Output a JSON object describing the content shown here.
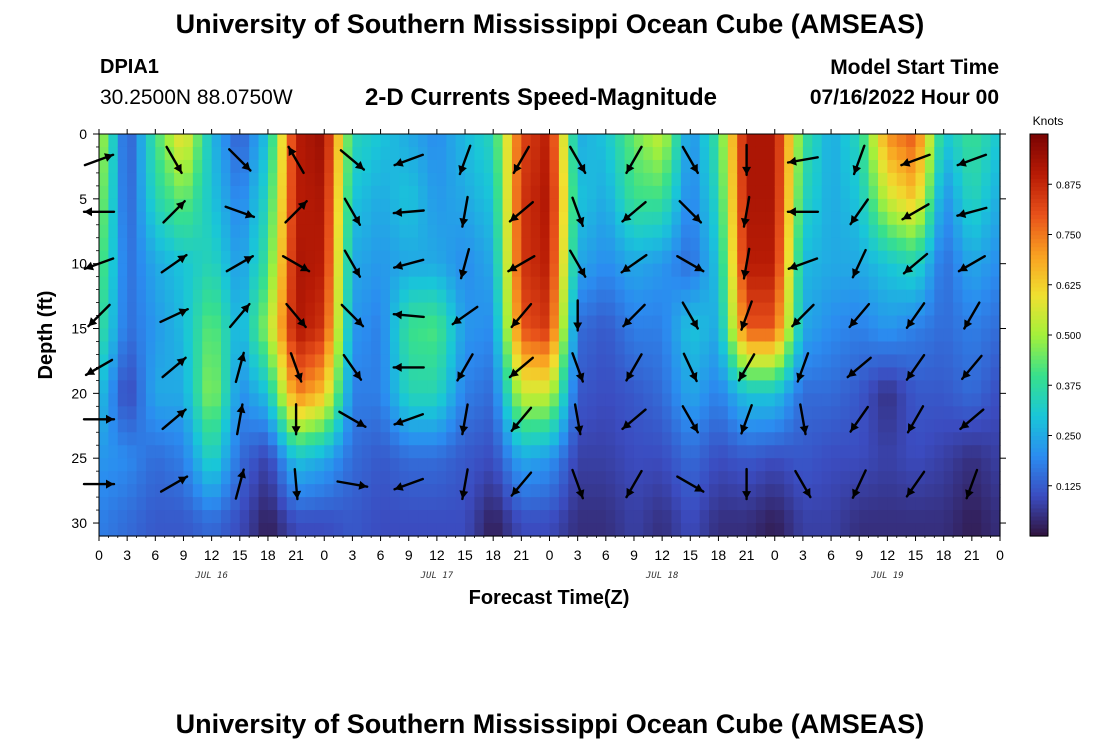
{
  "header": {
    "title": "University of Southern Mississippi Ocean Cube (AMSEAS)",
    "station_id": "DPIA1",
    "coordinates": "30.2500N  88.0750W",
    "subtitle": "2-D Currents Speed-Magnitude",
    "model_start_label": "Model Start Time",
    "model_start_value": "07/16/2022 Hour 00"
  },
  "footer": {
    "title": "University of Southern Mississippi Ocean Cube (AMSEAS)"
  },
  "chart_data": {
    "type": "heatmap",
    "title": "2-D Currents Speed-Magnitude",
    "xlabel": "Forecast Time(Z)",
    "ylabel": "Depth (ft)",
    "x_range_hours": [
      0,
      96
    ],
    "y_range_ft": [
      0,
      31
    ],
    "y_inverted": true,
    "xticks_hours": [
      0,
      3,
      6,
      9,
      12,
      15,
      18,
      21,
      24,
      27,
      30,
      33,
      36,
      39,
      42,
      45,
      48,
      51,
      54,
      57,
      60,
      63,
      66,
      69,
      72,
      75,
      78,
      81,
      84,
      87,
      90,
      93,
      96
    ],
    "xtick_labels": [
      "0",
      "3",
      "6",
      "9",
      "12",
      "15",
      "18",
      "21",
      "0",
      "3",
      "6",
      "9",
      "12",
      "15",
      "18",
      "21",
      "0",
      "3",
      "6",
      "9",
      "12",
      "15",
      "18",
      "21",
      "0",
      "3",
      "6",
      "9",
      "12",
      "15",
      "18",
      "21",
      "0"
    ],
    "day_labels": [
      {
        "text": "JUL 16",
        "hour": 12
      },
      {
        "text": "JUL 17",
        "hour": 36
      },
      {
        "text": "JUL 18",
        "hour": 60
      },
      {
        "text": "JUL 19",
        "hour": 84
      }
    ],
    "yticks": [
      0,
      5,
      10,
      15,
      20,
      25,
      30
    ],
    "colorbar": {
      "unit": "Knots",
      "range": [
        0,
        1.0
      ],
      "ticks": [
        0.125,
        0.25,
        0.375,
        0.5,
        0.625,
        0.75,
        0.875
      ],
      "tick_labels": [
        "0.125",
        "0.250",
        "0.375",
        "0.500",
        "0.625",
        "0.750",
        "0.875"
      ],
      "colormap": [
        "#30123b",
        "#3b4cc0",
        "#2b8cf0",
        "#19c6d8",
        "#38e08c",
        "#a3f03b",
        "#f0e030",
        "#f9a021",
        "#e8511a",
        "#b81b05",
        "#7a0403"
      ]
    },
    "speed_depth_levels_ft": [
      0,
      5,
      10,
      15,
      20,
      25,
      30
    ],
    "speed_hours": [
      0,
      3,
      6,
      9,
      12,
      15,
      18,
      21,
      24,
      27,
      30,
      33,
      36,
      39,
      42,
      45,
      48,
      51,
      54,
      57,
      60,
      63,
      66,
      69,
      72,
      75,
      78,
      81,
      84,
      87,
      90,
      93,
      96
    ],
    "speed_grid_knots": [
      [
        0.55,
        0.1,
        0.4,
        0.62,
        0.28,
        0.12,
        0.3,
        0.9,
        0.95,
        0.35,
        0.3,
        0.25,
        0.2,
        0.28,
        0.35,
        0.82,
        0.9,
        0.25,
        0.3,
        0.45,
        0.55,
        0.2,
        0.4,
        0.92,
        0.92,
        0.4,
        0.25,
        0.35,
        0.72,
        0.8,
        0.3,
        0.4,
        0.3
      ],
      [
        0.5,
        0.12,
        0.35,
        0.45,
        0.3,
        0.18,
        0.35,
        0.9,
        0.92,
        0.3,
        0.25,
        0.3,
        0.22,
        0.25,
        0.3,
        0.85,
        0.92,
        0.3,
        0.25,
        0.4,
        0.4,
        0.18,
        0.35,
        0.92,
        0.92,
        0.35,
        0.25,
        0.3,
        0.55,
        0.65,
        0.2,
        0.35,
        0.25
      ],
      [
        0.45,
        0.15,
        0.25,
        0.3,
        0.35,
        0.22,
        0.4,
        0.92,
        0.9,
        0.25,
        0.22,
        0.25,
        0.25,
        0.2,
        0.25,
        0.85,
        0.9,
        0.25,
        0.2,
        0.25,
        0.22,
        0.15,
        0.3,
        0.9,
        0.9,
        0.28,
        0.25,
        0.25,
        0.3,
        0.35,
        0.15,
        0.25,
        0.2
      ],
      [
        0.4,
        0.15,
        0.22,
        0.28,
        0.45,
        0.25,
        0.5,
        0.92,
        0.85,
        0.22,
        0.18,
        0.4,
        0.42,
        0.22,
        0.2,
        0.8,
        0.85,
        0.15,
        0.12,
        0.18,
        0.18,
        0.3,
        0.25,
        0.8,
        0.8,
        0.25,
        0.2,
        0.18,
        0.22,
        0.18,
        0.15,
        0.18,
        0.15
      ],
      [
        0.3,
        0.08,
        0.25,
        0.25,
        0.5,
        0.2,
        0.3,
        0.75,
        0.65,
        0.18,
        0.18,
        0.35,
        0.35,
        0.18,
        0.15,
        0.55,
        0.55,
        0.12,
        0.1,
        0.12,
        0.15,
        0.25,
        0.18,
        0.3,
        0.3,
        0.15,
        0.15,
        0.12,
        0.05,
        0.12,
        0.12,
        0.15,
        0.1
      ],
      [
        0.22,
        0.2,
        0.15,
        0.18,
        0.35,
        0.15,
        0.08,
        0.3,
        0.25,
        0.15,
        0.12,
        0.15,
        0.15,
        0.12,
        0.1,
        0.25,
        0.22,
        0.08,
        0.08,
        0.1,
        0.1,
        0.15,
        0.1,
        0.12,
        0.1,
        0.12,
        0.1,
        0.1,
        0.08,
        0.1,
        0.08,
        0.05,
        0.08
      ],
      [
        0.18,
        0.15,
        0.12,
        0.12,
        0.15,
        0.1,
        0.02,
        0.1,
        0.1,
        0.12,
        0.1,
        0.1,
        0.1,
        0.1,
        0.02,
        0.1,
        0.1,
        0.05,
        0.05,
        0.08,
        0.05,
        0.1,
        0.05,
        0.05,
        0.02,
        0.08,
        0.08,
        0.05,
        0.05,
        0.05,
        0.05,
        0.02,
        0.05
      ]
    ],
    "vector_columns": [
      {
        "hour": 0,
        "angles": [
          20,
          180,
          200,
          225,
          210,
          0,
          0
        ]
      },
      {
        "hour": 8,
        "angles": [
          300,
          45,
          35,
          25,
          40,
          40,
          30
        ]
      },
      {
        "hour": 15,
        "angles": [
          315,
          340,
          30,
          50,
          75,
          80,
          75
        ]
      },
      {
        "hour": 21,
        "angles": [
          120,
          45,
          330,
          310,
          290,
          270,
          275
        ]
      },
      {
        "hour": 27,
        "angles": [
          320,
          300,
          300,
          315,
          305,
          330,
          350
        ]
      },
      {
        "hour": 33,
        "angles": [
          200,
          185,
          195,
          175,
          180,
          200,
          200
        ]
      },
      {
        "hour": 39,
        "angles": [
          250,
          260,
          255,
          215,
          240,
          260,
          260
        ]
      },
      {
        "hour": 45,
        "angles": [
          240,
          220,
          210,
          230,
          220,
          230,
          230
        ]
      },
      {
        "hour": 51,
        "angles": [
          300,
          290,
          300,
          270,
          290,
          280,
          290
        ]
      },
      {
        "hour": 57,
        "angles": [
          240,
          220,
          215,
          225,
          240,
          220,
          240
        ]
      },
      {
        "hour": 63,
        "angles": [
          300,
          315,
          330,
          300,
          295,
          300,
          330
        ]
      },
      {
        "hour": 69,
        "angles": [
          270,
          260,
          260,
          250,
          240,
          250,
          270
        ]
      },
      {
        "hour": 75,
        "angles": [
          190,
          180,
          200,
          225,
          250,
          280,
          300
        ]
      },
      {
        "hour": 81,
        "angles": [
          250,
          235,
          245,
          230,
          220,
          235,
          245
        ]
      },
      {
        "hour": 87,
        "angles": [
          200,
          210,
          220,
          235,
          235,
          240,
          235
        ]
      },
      {
        "hour": 93,
        "angles": [
          200,
          195,
          210,
          240,
          230,
          220,
          250
        ]
      }
    ],
    "vector_depths_ft": [
      2,
      6,
      10,
      14,
      18,
      22,
      27
    ]
  }
}
